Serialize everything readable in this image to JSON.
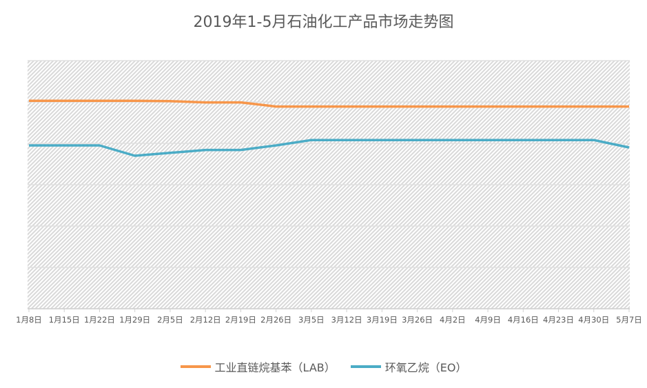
{
  "chart_data": {
    "type": "line",
    "title": "2019年1-5月石油化工产品市场走势图",
    "xlabel": "",
    "ylabel": "",
    "categories": [
      "1月8日",
      "1月15日",
      "1月22日",
      "1月29日",
      "2月5日",
      "2月12日",
      "2月19日",
      "2月26日",
      "3月5日",
      "3月12日",
      "3月19日",
      "3月26日",
      "4月2日",
      "4月9日",
      "4月16日",
      "4月23日",
      "4月30日",
      "5月7日"
    ],
    "ylim": [
      0,
      6
    ],
    "y_tick_labels_shown": false,
    "grid": true,
    "legend": "bottom",
    "series": [
      {
        "name": "工业直链烷基苯（LAB）",
        "color": "#f7964a",
        "values": [
          5.03,
          5.03,
          5.03,
          5.03,
          5.02,
          4.99,
          4.99,
          4.89,
          4.89,
          4.89,
          4.89,
          4.89,
          4.89,
          4.89,
          4.89,
          4.89,
          4.89,
          4.89
        ]
      },
      {
        "name": "环氧乙烷（EO）",
        "color": "#4bacc6",
        "values": [
          3.95,
          3.95,
          3.95,
          3.7,
          3.77,
          3.84,
          3.84,
          3.95,
          4.08,
          4.08,
          4.08,
          4.08,
          4.08,
          4.08,
          4.08,
          4.08,
          4.08,
          3.9
        ]
      }
    ]
  }
}
